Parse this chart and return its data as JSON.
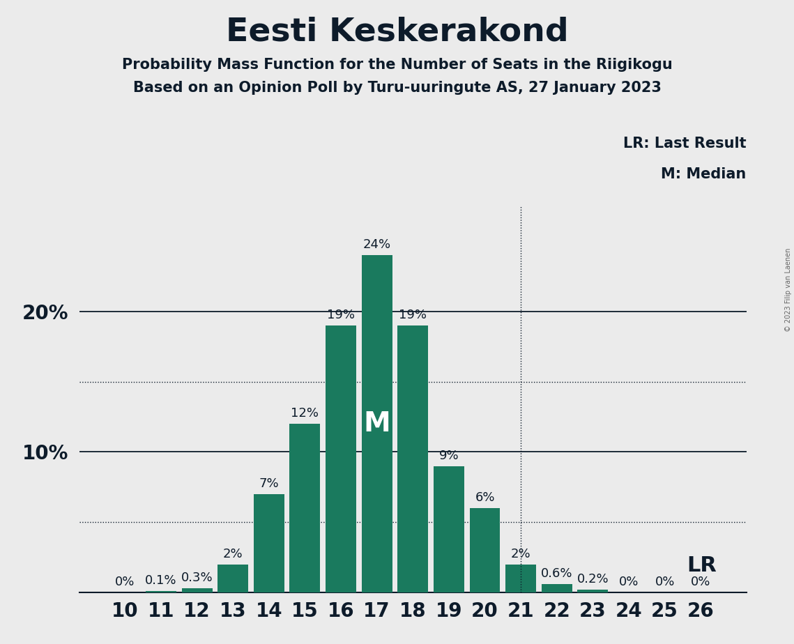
{
  "title": "Eesti Keskerakond",
  "subtitle1": "Probability Mass Function for the Number of Seats in the Riigikogu",
  "subtitle2": "Based on an Opinion Poll by Turu-uuringute AS, 27 January 2023",
  "copyright": "© 2023 Filip van Laenen",
  "seats": [
    10,
    11,
    12,
    13,
    14,
    15,
    16,
    17,
    18,
    19,
    20,
    21,
    22,
    23,
    24,
    25,
    26
  ],
  "probabilities": [
    0.0,
    0.1,
    0.3,
    2.0,
    7.0,
    12.0,
    19.0,
    24.0,
    19.0,
    9.0,
    6.0,
    2.0,
    0.6,
    0.2,
    0.0,
    0.0,
    0.0
  ],
  "labels": [
    "0%",
    "0.1%",
    "0.3%",
    "2%",
    "7%",
    "12%",
    "19%",
    "24%",
    "19%",
    "9%",
    "6%",
    "2%",
    "0.6%",
    "0.2%",
    "0%",
    "0%",
    "0%"
  ],
  "bar_color": "#1a7a5e",
  "background_color": "#ebebeb",
  "median_seat": 17,
  "lr_seat": 21,
  "legend_lr": "LR: Last Result",
  "legend_m": "M: Median",
  "title_fontsize": 34,
  "subtitle_fontsize": 15,
  "axis_fontsize": 20,
  "bar_label_fontsize": 13,
  "legend_fontsize": 15,
  "text_color": "#0d1b2a"
}
